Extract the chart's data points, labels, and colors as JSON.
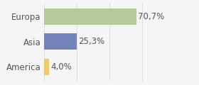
{
  "categories": [
    "Europa",
    "Asia",
    "America"
  ],
  "values": [
    70.7,
    25.3,
    4.0
  ],
  "labels": [
    "70,7%",
    "25,3%",
    "4,0%"
  ],
  "bar_colors": [
    "#b5c99a",
    "#7183b8",
    "#f0c96a"
  ],
  "background_color": "#f5f5f5",
  "xlim": [
    0,
    100
  ],
  "bar_height": 0.65,
  "label_fontsize": 8.5,
  "tick_fontsize": 8.5,
  "grid_color": "#dddddd",
  "grid_x_ticks": [
    0,
    25,
    50,
    75,
    100
  ]
}
